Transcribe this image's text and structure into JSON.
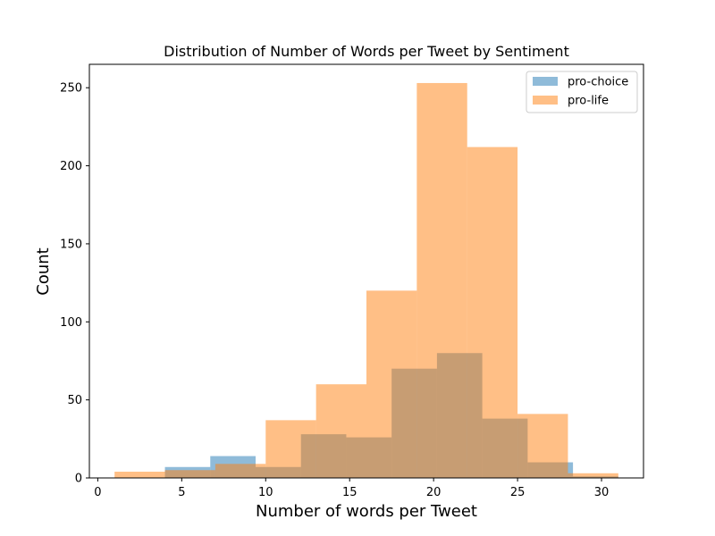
{
  "chart_data": {
    "type": "bar",
    "title": "Distribution of Number of Words per Tweet by Sentiment",
    "xlabel": "Number of words per Tweet",
    "ylabel": "Count",
    "xlim": [
      -0.5,
      32.5
    ],
    "ylim": [
      0,
      265
    ],
    "xticks": [
      0,
      5,
      10,
      15,
      20,
      25,
      30
    ],
    "yticks": [
      0,
      50,
      100,
      150,
      200,
      250
    ],
    "legend_position": "top-right",
    "grid": false,
    "series": [
      {
        "name": "pro-choice",
        "color": "#1f77b4",
        "opacity": 0.5,
        "bins": [
          {
            "x0": 4.0,
            "x1": 6.7,
            "count": 7
          },
          {
            "x0": 6.7,
            "x1": 9.4,
            "count": 14
          },
          {
            "x0": 9.4,
            "x1": 12.1,
            "count": 7
          },
          {
            "x0": 12.1,
            "x1": 14.8,
            "count": 28
          },
          {
            "x0": 14.8,
            "x1": 17.5,
            "count": 26
          },
          {
            "x0": 17.5,
            "x1": 20.2,
            "count": 70
          },
          {
            "x0": 20.2,
            "x1": 22.9,
            "count": 80
          },
          {
            "x0": 22.9,
            "x1": 25.6,
            "count": 38
          },
          {
            "x0": 25.6,
            "x1": 28.3,
            "count": 10
          },
          {
            "x0": 28.3,
            "x1": 31.0,
            "count": 1
          }
        ]
      },
      {
        "name": "pro-life",
        "color": "#ff7f0e",
        "opacity": 0.5,
        "bins": [
          {
            "x0": 1.0,
            "x1": 4.0,
            "count": 4
          },
          {
            "x0": 4.0,
            "x1": 7.0,
            "count": 5
          },
          {
            "x0": 7.0,
            "x1": 10.0,
            "count": 9
          },
          {
            "x0": 10.0,
            "x1": 13.0,
            "count": 37
          },
          {
            "x0": 13.0,
            "x1": 16.0,
            "count": 60
          },
          {
            "x0": 16.0,
            "x1": 19.0,
            "count": 120
          },
          {
            "x0": 19.0,
            "x1": 22.0,
            "count": 253
          },
          {
            "x0": 22.0,
            "x1": 25.0,
            "count": 212
          },
          {
            "x0": 25.0,
            "x1": 28.0,
            "count": 41
          },
          {
            "x0": 28.0,
            "x1": 31.0,
            "count": 3
          }
        ]
      }
    ]
  }
}
